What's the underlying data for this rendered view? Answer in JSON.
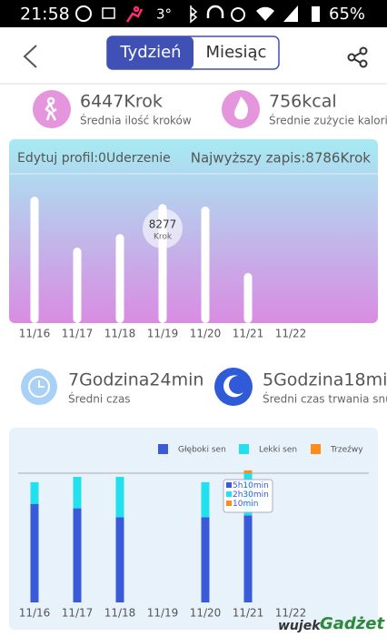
{
  "status_bar": {
    "time": "21:58",
    "temperature": "3°",
    "battery": "65%"
  },
  "header": {
    "tabs": [
      "Tydzień",
      "Miesiąc"
    ],
    "active_tab": 0
  },
  "steps_summary": [
    {
      "value": "6447Krok",
      "label": "Średnia ilość kroków"
    },
    {
      "value": "756kcal",
      "label": "Średnie zużycie kalorii"
    }
  ],
  "steps_chart": {
    "type": "bar",
    "left_text": "Edytuj profil:0Uderzenie",
    "right_text": "Najwyższy zapis:8786Krok",
    "categories": [
      "11/16",
      "11/17",
      "11/18",
      "11/19",
      "11/20",
      "11/21",
      "11/22"
    ],
    "values": [
      8786,
      5250,
      6190,
      8277,
      8100,
      3480,
      0
    ],
    "color": "#ffffff",
    "ylim": [
      0,
      10000
    ],
    "tooltip": {
      "index": 3,
      "value": "8277",
      "unit": "Krok"
    }
  },
  "sleep_summary": [
    {
      "value": "7Godzina24min",
      "label": "Średni czas"
    },
    {
      "value": "5Godzina18min",
      "label": "Średni czas trwania snu"
    }
  ],
  "sleep_chart": {
    "type": "stacked_bar",
    "categories": [
      "11/16",
      "11/17",
      "11/18",
      "11/19",
      "11/20",
      "11/21",
      "11/22"
    ],
    "series": [
      {
        "name": "Głęboki sen",
        "color": "#3a5bd9",
        "values": [
          351,
          335,
          303,
          0,
          303,
          310,
          0
        ]
      },
      {
        "name": "Lekki sen",
        "color": "#22e0ee",
        "values": [
          77,
          112,
          144,
          0,
          125,
          150,
          0
        ]
      },
      {
        "name": "Trzeźwy",
        "color": "#ff8c1a",
        "values": [
          0,
          0,
          0,
          0,
          0,
          10,
          0
        ]
      }
    ],
    "ylim": [
      0,
      460
    ],
    "tooltip": {
      "index": 5,
      "labels": [
        "5h10min",
        "2h30min",
        "10min"
      ]
    }
  },
  "watermark": {
    "part1": "wujek",
    "part2": "Gadżet"
  }
}
